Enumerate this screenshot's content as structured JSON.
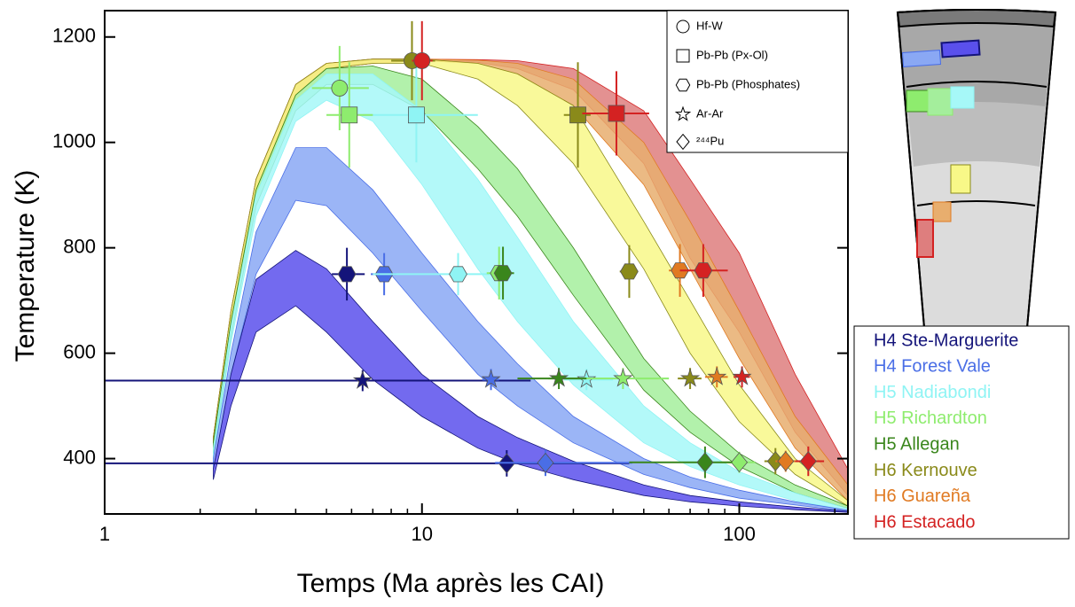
{
  "chart_data": {
    "type": "scatter",
    "x_label": "Temps (Ma après les CAI)",
    "y_label": "Temperature (K)",
    "xscale": "log",
    "xlim": [
      1,
      220
    ],
    "ylim": [
      295,
      1250
    ],
    "xticks": [
      1,
      10,
      100
    ],
    "yticks": [
      400,
      600,
      800,
      1000,
      1200
    ],
    "methods": [
      {
        "name": "Hf-W",
        "marker": "circle"
      },
      {
        "name": "Pb-Pb (Px-Ol)",
        "marker": "square"
      },
      {
        "name": "Pb-Pb (Phosphates)",
        "marker": "hexagon"
      },
      {
        "name": "Ar-Ar",
        "marker": "star"
      },
      {
        "name": "²⁴⁴Pu",
        "marker": "diamond"
      }
    ],
    "band_x": [
      2.2,
      2.5,
      3,
      4,
      5,
      7,
      10,
      15,
      20,
      30,
      50,
      70,
      100,
      150,
      220
    ],
    "series": [
      {
        "name": "H4 Ste-Marguerite",
        "color": "#14147a",
        "band_color": "#5a50ec",
        "band": {
          "upper": [
            380,
            560,
            740,
            795,
            760,
            660,
            560,
            480,
            440,
            395,
            350,
            330,
            318,
            308,
            300
          ],
          "lower": [
            360,
            500,
            640,
            690,
            640,
            550,
            480,
            420,
            390,
            360,
            330,
            318,
            310,
            303,
            298
          ]
        },
        "points": [
          {
            "method": 2,
            "x": 5.8,
            "y": 750,
            "x_err": [
              5.2,
              6.6
            ],
            "y_err": 50
          },
          {
            "method": 3,
            "x": 6.5,
            "y": 548,
            "x_err": [
              0.5,
              22
            ],
            "y_err": 20
          },
          {
            "method": 4,
            "x": 18.5,
            "y": 391,
            "x_err": [
              0.5,
              45
            ],
            "y_err": 25
          }
        ]
      },
      {
        "name": "H4 Forest Vale",
        "color": "#4a6ee6",
        "band_color": "#8aa8f4",
        "band": {
          "upper": [
            400,
            600,
            830,
            990,
            990,
            910,
            790,
            660,
            580,
            480,
            400,
            365,
            340,
            318,
            302
          ],
          "lower": [
            380,
            560,
            750,
            890,
            880,
            790,
            680,
            560,
            500,
            430,
            370,
            345,
            325,
            312,
            300
          ]
        },
        "points": [
          {
            "method": 2,
            "x": 7.6,
            "y": 750,
            "x_err": [
              6.9,
              8.3
            ],
            "y_err": 40
          },
          {
            "method": 3,
            "x": 16.5,
            "y": 550,
            "x_err": [
              15.5,
              17.5
            ],
            "y_err": 20
          },
          {
            "method": 4,
            "x": 24.5,
            "y": 392,
            "x_err": [
              17,
              46
            ],
            "y_err": 25
          }
        ]
      },
      {
        "name": "H5 Nadiabondi",
        "color": "#8ff4f4",
        "band_color": "#a6f8f8",
        "band": {
          "upper": [
            420,
            650,
            900,
            1080,
            1130,
            1130,
            1060,
            930,
            820,
            660,
            500,
            430,
            375,
            335,
            305
          ],
          "lower": [
            400,
            620,
            860,
            1040,
            1080,
            1040,
            920,
            760,
            660,
            540,
            430,
            385,
            350,
            320,
            302
          ]
        },
        "points": [
          {
            "method": 1,
            "x": 9.6,
            "y": 1052,
            "x_err": [
              6.5,
              15
            ],
            "y_err": 90
          },
          {
            "method": 2,
            "x": 13,
            "y": 750,
            "x_err": [
              7,
              18
            ],
            "y_err": 40
          },
          {
            "method": 3,
            "x": 33,
            "y": 550,
            "x_err": [
              28,
              40
            ],
            "y_err": 20
          }
        ]
      },
      {
        "name": "H5 Richardton",
        "color": "#8eec6e",
        "points": [
          {
            "method": 0,
            "x": 5.5,
            "y": 1103,
            "x_err": [
              4.5,
              6.8
            ],
            "y_err": 80
          },
          {
            "method": 1,
            "x": 5.9,
            "y": 1052,
            "x_err": [
              5,
              7
            ],
            "y_err": 100
          },
          {
            "method": 2,
            "x": 17.5,
            "y": 752,
            "x_err": [
              16,
              19
            ],
            "y_err": 50
          },
          {
            "method": 3,
            "x": 43,
            "y": 552,
            "x_err": [
              25,
              60
            ],
            "y_err": 20
          },
          {
            "method": 4,
            "x": 100,
            "y": 393,
            "x_err": [
              87,
              112
            ],
            "y_err": 20
          }
        ]
      },
      {
        "name": "H5 Allegan",
        "color": "#3a861c",
        "band_color": "#a4ee9c",
        "band": {
          "upper": [
            430,
            660,
            910,
            1090,
            1140,
            1145,
            1120,
            1030,
            950,
            800,
            590,
            490,
            410,
            350,
            310
          ],
          "lower": [
            410,
            630,
            880,
            1060,
            1110,
            1110,
            1060,
            950,
            860,
            710,
            530,
            450,
            385,
            335,
            305
          ]
        },
        "points": [
          {
            "method": 2,
            "x": 18,
            "y": 752,
            "x_err": [
              17,
              19.5
            ],
            "y_err": 50
          },
          {
            "method": 3,
            "x": 27,
            "y": 552,
            "x_err": [
              20,
              33
            ],
            "y_err": 20
          },
          {
            "method": 4,
            "x": 78,
            "y": 393,
            "x_err": [
              45,
              95
            ],
            "y_err": 30
          }
        ]
      },
      {
        "name": "H6 Kernouve",
        "color": "#8a8a1a",
        "band_color": "#f8f888",
        "band": {
          "upper": [
            440,
            680,
            930,
            1110,
            1150,
            1158,
            1158,
            1150,
            1130,
            1070,
            850,
            700,
            540,
            400,
            320
          ],
          "lower": [
            430,
            660,
            910,
            1090,
            1140,
            1150,
            1150,
            1120,
            1070,
            960,
            760,
            600,
            470,
            370,
            310
          ]
        },
        "points": [
          {
            "method": 0,
            "x": 9.3,
            "y": 1155,
            "x_err": [
              8,
              11
            ],
            "y_err": 75
          },
          {
            "method": 1,
            "x": 31,
            "y": 1052,
            "x_err": [
              28,
              34
            ],
            "y_err": 100
          },
          {
            "method": 2,
            "x": 45,
            "y": 755,
            "x_err": [
              42,
              48
            ],
            "y_err": 50
          },
          {
            "method": 3,
            "x": 70,
            "y": 552,
            "x_err": [
              64,
              76
            ],
            "y_err": 20
          },
          {
            "method": 4,
            "x": 130,
            "y": 395,
            "x_err": [
              120,
              140
            ],
            "y_err": 25
          }
        ]
      },
      {
        "name": "H6 Guareña",
        "color": "#e07a22",
        "band_color": "#e8ae6e",
        "band": {
          "upper": [
            440,
            680,
            930,
            1110,
            1150,
            1158,
            1158,
            1156,
            1150,
            1120,
            1000,
            850,
            680,
            480,
            350
          ],
          "lower": [
            430,
            660,
            910,
            1090,
            1140,
            1150,
            1155,
            1150,
            1130,
            1070,
            920,
            760,
            590,
            420,
            320
          ]
        },
        "points": [
          {
            "method": 2,
            "x": 65,
            "y": 757,
            "x_err": [
              60,
              70
            ],
            "y_err": 50
          },
          {
            "method": 3,
            "x": 85,
            "y": 555,
            "x_err": [
              78,
              92
            ],
            "y_err": 20
          },
          {
            "method": 4,
            "x": 140,
            "y": 395,
            "x_err": [
              130,
              150
            ],
            "y_err": 20
          }
        ]
      },
      {
        "name": "H6 Estacado",
        "color": "#d42222",
        "band_color": "#de7e7e",
        "band": {
          "upper": [
            440,
            680,
            930,
            1110,
            1150,
            1158,
            1158,
            1157,
            1155,
            1140,
            1060,
            930,
            790,
            560,
            380
          ],
          "lower": [
            430,
            660,
            910,
            1090,
            1140,
            1150,
            1156,
            1152,
            1140,
            1100,
            960,
            780,
            640,
            450,
            330
          ]
        },
        "points": [
          {
            "method": 0,
            "x": 10,
            "y": 1155,
            "x_err": [
              9.3,
              10.8
            ],
            "y_err": 75
          },
          {
            "method": 1,
            "x": 41,
            "y": 1055,
            "x_err": [
              32,
              52
            ],
            "y_err": 80
          },
          {
            "method": 2,
            "x": 77,
            "y": 757,
            "x_err": [
              65,
              92
            ],
            "y_err": 50
          },
          {
            "method": 3,
            "x": 102,
            "y": 555,
            "x_err": [
              96,
              108
            ],
            "y_err": 20
          },
          {
            "method": 4,
            "x": 165,
            "y": 395,
            "x_err": [
              150,
              185
            ],
            "y_err": 28
          }
        ]
      }
    ]
  }
}
